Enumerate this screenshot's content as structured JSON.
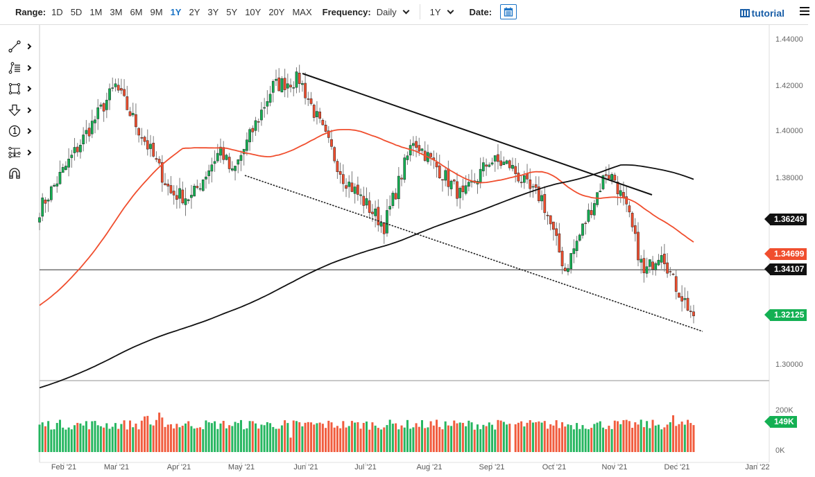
{
  "toolbar": {
    "range_label": "Range:",
    "ranges": [
      "1D",
      "5D",
      "1M",
      "3M",
      "6M",
      "9M",
      "1Y",
      "2Y",
      "3Y",
      "5Y",
      "10Y",
      "20Y",
      "MAX"
    ],
    "active_range": "1Y",
    "frequency_label": "Frequency:",
    "frequency_value": "Daily",
    "period_value": "1Y",
    "date_label": "Date:",
    "tutorial_label": "tutorial"
  },
  "drawing_tools": [
    {
      "name": "line-tool-icon",
      "has_submenu": true
    },
    {
      "name": "fib-tool-icon",
      "has_submenu": true
    },
    {
      "name": "rectangle-tool-icon",
      "has_submenu": true
    },
    {
      "name": "arrow-down-tool-icon",
      "has_submenu": true
    },
    {
      "name": "annotation-number-icon",
      "has_submenu": true
    },
    {
      "name": "measure-tool-icon",
      "has_submenu": true
    },
    {
      "name": "magnet-icon",
      "has_submenu": false
    }
  ],
  "colors": {
    "up": "#14b053",
    "down": "#f04e2e",
    "ma_fast": "#f04e2e",
    "ma_slow": "#111111",
    "accent": "#1a73c6"
  },
  "chart_data": {
    "type": "candlestick",
    "title": "",
    "instrument_frequency": "Daily",
    "x_ticks": [
      "Feb '21",
      "Mar '21",
      "Apr '21",
      "May '21",
      "Jun '21",
      "Jul '21",
      "Aug '21",
      "Sep '21",
      "Oct '21",
      "Nov '21",
      "Dec '21",
      "Jan '22"
    ],
    "y_ticks": [
      "1.44000",
      "1.42000",
      "1.40000",
      "1.38000",
      "1.30000"
    ],
    "ylim": [
      1.295,
      1.445
    ],
    "price_tags": [
      {
        "label": "1.36249",
        "color": "black",
        "meaning": "slow moving average (200)"
      },
      {
        "label": "1.34699",
        "color": "red",
        "meaning": "fast moving average (50)"
      },
      {
        "label": "1.34107",
        "color": "black",
        "meaning": "horizontal support line"
      },
      {
        "label": "1.32125",
        "color": "green",
        "meaning": "last close"
      }
    ],
    "key_price_path": [
      {
        "date": "Jan '21 end",
        "price": 1.367
      },
      {
        "date": "Feb 24 '21",
        "price": 1.42
      },
      {
        "date": "Mar '21 mid",
        "price": 1.392
      },
      {
        "date": "Apr '21 early",
        "price": 1.372
      },
      {
        "date": "Apr '21 end",
        "price": 1.392
      },
      {
        "date": "May '21 early",
        "price": 1.382
      },
      {
        "date": "Jun 01 '21",
        "price": 1.423
      },
      {
        "date": "Jun '21 end",
        "price": 1.381
      },
      {
        "date": "Jul 20 '21",
        "price": 1.36
      },
      {
        "date": "Aug 03 '21",
        "price": 1.397
      },
      {
        "date": "Aug '21 end",
        "price": 1.372
      },
      {
        "date": "Sep 03 '21",
        "price": 1.388
      },
      {
        "date": "Sep 29 '21",
        "price": 1.341
      },
      {
        "date": "Oct 20 '21",
        "price": 1.383
      },
      {
        "date": "Nov 04 '21",
        "price": 1.363
      },
      {
        "date": "Nov 10 '21",
        "price": 1.339
      },
      {
        "date": "Nov 19 '21",
        "price": 1.35
      },
      {
        "date": "Dec 08 '21",
        "price": 1.3165
      },
      {
        "date": "Dec 09 '21",
        "price": 1.32125
      }
    ],
    "moving_averages": [
      {
        "name": "MA fast",
        "color": "#f04e2e",
        "last": 1.34699
      },
      {
        "name": "MA slow",
        "color": "#111111",
        "last": 1.36249
      }
    ],
    "drawn_lines": [
      {
        "type": "trendline",
        "style": "solid",
        "from": {
          "date": "Jun 01 '21",
          "price": 1.4245
        },
        "to": {
          "date": "Nov 27 '21",
          "price": 1.3735
        }
      },
      {
        "type": "trendline",
        "style": "dotted",
        "from": {
          "date": "May 03 '21",
          "price": 1.381
        },
        "to": {
          "date": "Dec 12 '21",
          "price": 1.313
        }
      },
      {
        "type": "horizontal",
        "style": "solid",
        "price": 1.34107
      }
    ],
    "volume": {
      "y_ticks": [
        "200K",
        "0K"
      ],
      "last_label": "149K",
      "last_color": "green"
    }
  }
}
